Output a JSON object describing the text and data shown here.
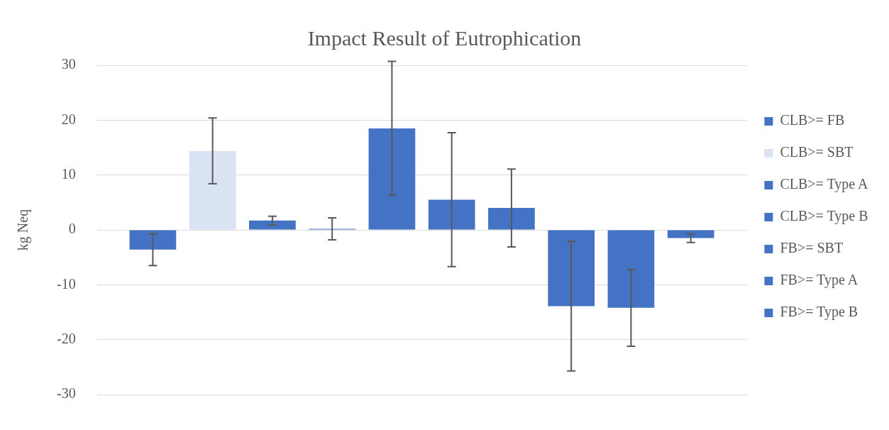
{
  "chart_data": {
    "type": "bar",
    "title": "Impact Result of Eutrophication",
    "ylabel": "kg Neq",
    "categories": [
      null
    ],
    "series": [
      {
        "name": "CLB>= FB",
        "color": "#4472c4",
        "values": [
          -3.6
        ],
        "errors": [
          2.9
        ]
      },
      {
        "name": "CLB>= SBT",
        "color": "#dae3f3",
        "values": [
          14.4
        ],
        "errors": [
          6
        ]
      },
      {
        "name": "CLB>= Type A",
        "color": "#4472c4",
        "values": [
          1.7
        ],
        "errors": [
          0.8
        ]
      },
      {
        "name": "CLB>= Type B",
        "color": "#4472c4",
        "values": [
          0.2
        ],
        "errors": [
          2
        ]
      },
      {
        "name": "FB>= SBT",
        "color": "#4472c4",
        "values": [
          18.5
        ],
        "errors": [
          12.2
        ]
      },
      {
        "name": "FB>= Type A",
        "color": "#4472c4",
        "values": [
          5.5
        ],
        "errors": [
          12.2
        ]
      },
      {
        "name": "FB>= Type B",
        "color": "#4472c4",
        "values": [
          4.0
        ],
        "errors": [
          7.1
        ]
      },
      {
        "color": "#4472c4",
        "values": [
          -13.9
        ],
        "errors": [
          11.8
        ]
      },
      {
        "color": "#4472c4",
        "values": [
          -14.2
        ],
        "errors": [
          7
        ]
      },
      {
        "color": "#4472c4",
        "values": [
          -1.5
        ],
        "errors": [
          0.8
        ]
      }
    ],
    "ylim": [
      -30,
      30
    ],
    "yticks": [
      -30,
      -20,
      -10,
      0,
      10,
      20,
      30
    ],
    "grid": "y",
    "legend": "right"
  }
}
